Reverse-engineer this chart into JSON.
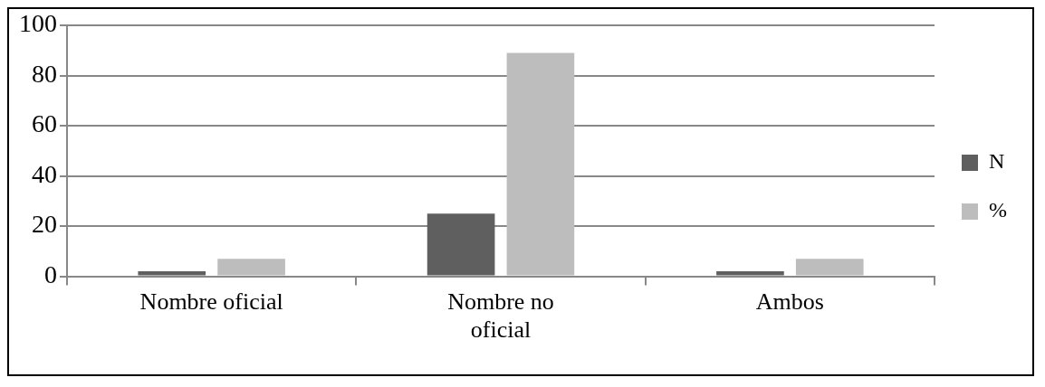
{
  "chart_data": {
    "type": "bar",
    "categories": [
      "Nombre oficial",
      "Nombre no oficial",
      "Ambos"
    ],
    "series": [
      {
        "name": "N",
        "color": "#5f5f5f",
        "values": [
          2,
          25,
          2
        ]
      },
      {
        "name": "%",
        "color": "#bdbdbd",
        "values": [
          7,
          89,
          7
        ]
      }
    ],
    "ylim": [
      0,
      100
    ],
    "yticks": [
      0,
      20,
      40,
      60,
      80,
      100
    ],
    "grid": "y",
    "legend": "right"
  }
}
